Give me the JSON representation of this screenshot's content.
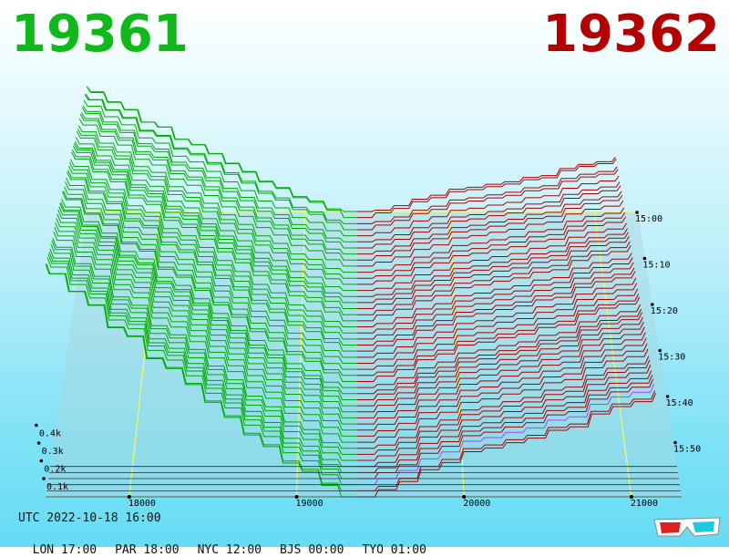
{
  "header": {
    "left_value": "19361",
    "right_value": "19362"
  },
  "footer": {
    "utc": "UTC 2022-10-18 16:00",
    "cities": [
      {
        "label": "LON 17:00"
      },
      {
        "label": "PAR 18:00"
      },
      {
        "label": "NYC 12:00"
      },
      {
        "label": "BJS 00:00"
      },
      {
        "label": "TYO 01:00"
      }
    ]
  },
  "colors": {
    "bid": "#00aa00",
    "ask": "#aa0000",
    "grid": "#ffff55",
    "latest": "#aa44ff"
  },
  "chart_data": {
    "type": "area",
    "x_axis": {
      "ticks": [
        "18000",
        "19000",
        "20000",
        "21000"
      ],
      "range": [
        17500,
        21300
      ]
    },
    "volume_axis": {
      "ticks": [
        "0.1k",
        "0.2k",
        "0.3k",
        "0.4k"
      ]
    },
    "time_axis": {
      "ticks": [
        "15:00",
        "15:10",
        "15:20",
        "15:30",
        "15:40",
        "15:50"
      ]
    },
    "mid_price": 19361.5
  },
  "icons": {
    "glasses": "3d-glasses-icon"
  }
}
